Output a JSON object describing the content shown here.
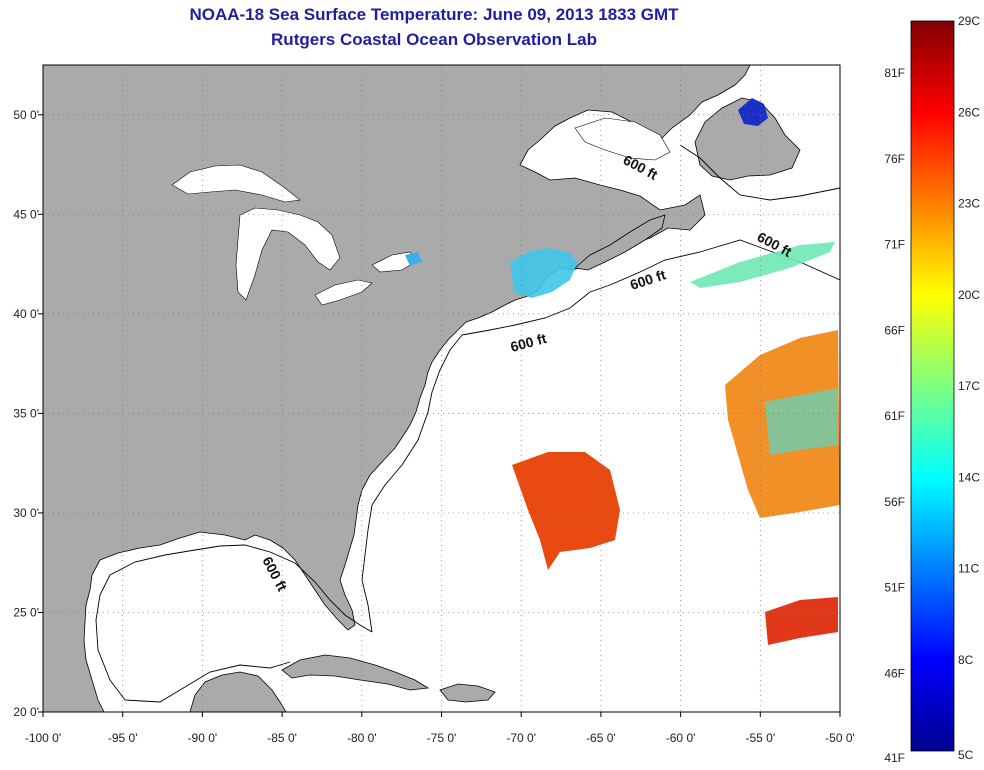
{
  "header": {
    "title": "NOAA-18 Sea Surface Temperature:  June 09, 2013 1833 GMT",
    "subtitle": "Rutgers Coastal Ocean Observation Lab"
  },
  "map": {
    "lon_range": [
      -100,
      -50
    ],
    "lat_range": [
      20,
      52.5
    ],
    "grid": "dotted",
    "lon_ticks": [
      {
        "value": -100,
        "label": "-100 0'"
      },
      {
        "value": -95,
        "label": "-95 0'"
      },
      {
        "value": -90,
        "label": "-90 0'"
      },
      {
        "value": -85,
        "label": "-85 0'"
      },
      {
        "value": -80,
        "label": "-80 0'"
      },
      {
        "value": -75,
        "label": "-75 0'"
      },
      {
        "value": -70,
        "label": "-70 0'"
      },
      {
        "value": -65,
        "label": "-65 0'"
      },
      {
        "value": -60,
        "label": "-60 0'"
      },
      {
        "value": -55,
        "label": "-55 0'"
      },
      {
        "value": -50,
        "label": "-50 0'"
      }
    ],
    "lat_ticks": [
      {
        "value": 20,
        "label": "20 0'"
      },
      {
        "value": 25,
        "label": "25 0'"
      },
      {
        "value": 30,
        "label": "30 0'"
      },
      {
        "value": 35,
        "label": "35 0'"
      },
      {
        "value": 40,
        "label": "40 0'"
      },
      {
        "value": 45,
        "label": "45 0'"
      },
      {
        "value": 50,
        "label": "50 0'"
      }
    ],
    "contour_labels": [
      "600 ft",
      "600 ft",
      "600 ft",
      "600 ft",
      "600 ft"
    ],
    "colors": {
      "land": "#aaaaaa",
      "ocean": "#ffffff",
      "coastline": "#000000"
    }
  },
  "colorbar": {
    "celsius_labels": [
      "29C",
      "26C",
      "23C",
      "20C",
      "17C",
      "14C",
      "11C",
      "8C",
      "5C"
    ],
    "fahrenheit_labels": [
      "81F",
      "76F",
      "71F",
      "66F",
      "61F",
      "56F",
      "51F",
      "46F",
      "41F"
    ],
    "celsius_range": [
      5,
      29
    ],
    "colormap": "jet"
  }
}
